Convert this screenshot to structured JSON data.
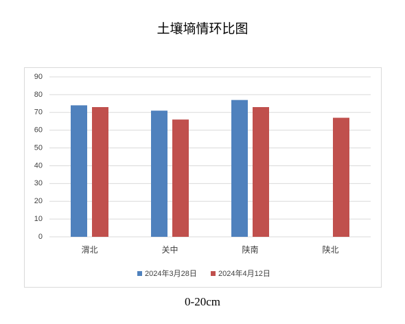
{
  "chart_data": {
    "type": "bar",
    "title": "土壤墒情环比图",
    "caption": "0-20cm",
    "categories": [
      "渭北",
      "关中",
      "陕南",
      "陕北"
    ],
    "series": [
      {
        "name": "2024年3月28日",
        "color": "#4f81bd",
        "values": [
          74,
          71,
          77,
          null
        ]
      },
      {
        "name": "2024年4月12日",
        "color": "#c0504d",
        "values": [
          73,
          66,
          73,
          67
        ]
      }
    ],
    "ylim": [
      0,
      90
    ],
    "yticks": [
      0,
      10,
      20,
      30,
      40,
      50,
      60,
      70,
      80,
      90
    ],
    "grid": true,
    "legend": "bottom"
  }
}
